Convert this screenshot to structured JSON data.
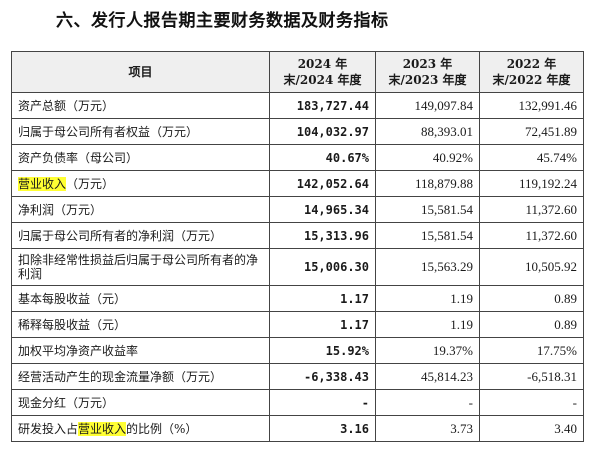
{
  "section_title": "六、发行人报告期主要财务数据及财务指标",
  "table": {
    "headers": {
      "item": "项目",
      "col1": "2024 年末/2024 年度",
      "col2": "2023 年末/2023 年度",
      "col3": "2022 年末/2022 年度"
    },
    "rows": [
      {
        "label": "资产总额（万元）",
        "v1": "183,727.44",
        "v2": "149,097.84",
        "v3": "132,991.46"
      },
      {
        "label": "归属于母公司所有者权益（万元）",
        "v1": "104,032.97",
        "v2": "88,393.01",
        "v3": "72,451.89"
      },
      {
        "label": "资产负债率（母公司）",
        "v1": "40.67%",
        "v2": "40.92%",
        "v3": "45.74%"
      },
      {
        "label_prefix": "",
        "label_highlight": "营业收入",
        "label_suffix": "（万元）",
        "v1": "142,052.64",
        "v2": "118,879.88",
        "v3": "119,192.24"
      },
      {
        "label": "净利润（万元）",
        "v1": "14,965.34",
        "v2": "15,581.54",
        "v3": "11,372.60"
      },
      {
        "label": "归属于母公司所有者的净利润（万元）",
        "v1": "15,313.96",
        "v2": "15,581.54",
        "v3": "11,372.60"
      },
      {
        "label": "扣除非经常性损益后归属于母公司所有者的净利润",
        "v1": "15,006.30",
        "v2": "15,563.29",
        "v3": "10,505.92"
      },
      {
        "label": "基本每股收益（元）",
        "v1": "1.17",
        "v2": "1.19",
        "v3": "0.89"
      },
      {
        "label": "稀释每股收益（元）",
        "v1": "1.17",
        "v2": "1.19",
        "v3": "0.89"
      },
      {
        "label": "加权平均净资产收益率",
        "v1": "15.92%",
        "v2": "19.37%",
        "v3": "17.75%"
      },
      {
        "label": "经营活动产生的现金流量净额（万元）",
        "v1": "-6,338.43",
        "v2": "45,814.23",
        "v3": "-6,518.31"
      },
      {
        "label": "现金分红（万元）",
        "v1": "-",
        "v2": "-",
        "v3": "-"
      },
      {
        "label_prefix": "研发投入占",
        "label_highlight": "营业收入",
        "label_suffix": "的比例（%）",
        "v1": "3.16",
        "v2": "3.73",
        "v3": "3.40"
      }
    ]
  },
  "colors": {
    "highlight": "#ffff33",
    "header_bg": "#efefef",
    "border": "#444444"
  }
}
